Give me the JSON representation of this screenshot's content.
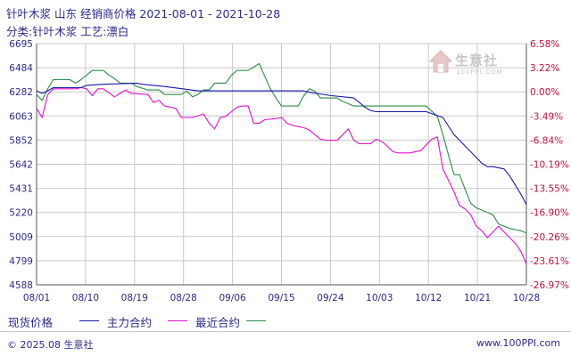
{
  "header": {
    "title": "针叶木浆 山东 经销商价格 2021-08-01 - 2021-10-28",
    "subtitle": "分类:针叶木浆 工艺:漂白"
  },
  "watermark": {
    "name": "生意社",
    "site": "100PPI.COM"
  },
  "footer": {
    "copyright": "© 2025.08 生意社",
    "url": "www.100PPI.com"
  },
  "colors": {
    "spot": "#1a1aa8",
    "main_contract": "#e010d0",
    "latest_contract": "#2e8b46",
    "axis": "#2a2a8a",
    "grid": "#c8c8c8"
  },
  "chart_data": {
    "type": "line",
    "title": "针叶木浆 山东 经销商价格 2021-08-01 - 2021-10-28",
    "ylim": [
      4588,
      6695
    ],
    "y_ticks": [
      "6695",
      "6484",
      "6282",
      "6063",
      "5852",
      "5642",
      "5431",
      "5220",
      "5009",
      "4799",
      "4588"
    ],
    "y2_ticks": [
      "6.58%",
      "3.22%",
      "0.00%",
      "-3.49%",
      "-6.84%",
      "-10.19%",
      "-13.55%",
      "-16.90%",
      "-20.26%",
      "-23.61%",
      "-26.97%"
    ],
    "x_ticks": [
      "08/01",
      "08/10",
      "08/19",
      "08/28",
      "09/06",
      "09/15",
      "09/24",
      "10/03",
      "10/12",
      "10/21",
      "10/28"
    ],
    "x_range_days": [
      0,
      88
    ],
    "legend": [
      "现货价格",
      "主力合约",
      "最近合约"
    ],
    "series": [
      {
        "name": "现货价格",
        "color": "#1a1aa8",
        "points": [
          [
            0,
            6282
          ],
          [
            1,
            6260
          ],
          [
            2,
            6282
          ],
          [
            3,
            6310
          ],
          [
            8,
            6310
          ],
          [
            9,
            6330
          ],
          [
            12,
            6340
          ],
          [
            18,
            6350
          ],
          [
            19,
            6340
          ],
          [
            23,
            6320
          ],
          [
            29,
            6282
          ],
          [
            30,
            6282
          ],
          [
            37,
            6282
          ],
          [
            48,
            6282
          ],
          [
            49,
            6270
          ],
          [
            53,
            6240
          ],
          [
            57,
            6220
          ],
          [
            59,
            6140
          ],
          [
            60,
            6110
          ],
          [
            61,
            6100
          ],
          [
            69,
            6100
          ],
          [
            70,
            6100
          ],
          [
            73,
            6050
          ],
          [
            75,
            5900
          ],
          [
            76,
            5850
          ],
          [
            77,
            5800
          ],
          [
            78,
            5750
          ],
          [
            79,
            5700
          ],
          [
            80,
            5650
          ],
          [
            81,
            5620
          ],
          [
            82,
            5620
          ],
          [
            84,
            5600
          ],
          [
            85,
            5540
          ],
          [
            86,
            5460
          ],
          [
            87,
            5380
          ],
          [
            88,
            5290
          ]
        ]
      },
      {
        "name": "主力合约",
        "color": "#e010d0",
        "points": [
          [
            0,
            6130
          ],
          [
            1,
            6050
          ],
          [
            2,
            6250
          ],
          [
            3,
            6300
          ],
          [
            7,
            6300
          ],
          [
            8,
            6310
          ],
          [
            9,
            6300
          ],
          [
            10,
            6240
          ],
          [
            11,
            6300
          ],
          [
            12,
            6300
          ],
          [
            14,
            6230
          ],
          [
            15,
            6260
          ],
          [
            16,
            6290
          ],
          [
            17,
            6260
          ],
          [
            20,
            6250
          ],
          [
            21,
            6180
          ],
          [
            22,
            6200
          ],
          [
            23,
            6150
          ],
          [
            25,
            6130
          ],
          [
            26,
            6050
          ],
          [
            28,
            6050
          ],
          [
            30,
            6080
          ],
          [
            31,
            6000
          ],
          [
            32,
            5950
          ],
          [
            33,
            6050
          ],
          [
            34,
            6060
          ],
          [
            35,
            6100
          ],
          [
            36,
            6140
          ],
          [
            37,
            6150
          ],
          [
            38,
            6150
          ],
          [
            39,
            6000
          ],
          [
            40,
            6000
          ],
          [
            41,
            6030
          ],
          [
            43,
            6040
          ],
          [
            44,
            6050
          ],
          [
            45,
            6000
          ],
          [
            46,
            5980
          ],
          [
            47,
            5970
          ],
          [
            48,
            5960
          ],
          [
            49,
            5940
          ],
          [
            50,
            5900
          ],
          [
            51,
            5860
          ],
          [
            52,
            5850
          ],
          [
            54,
            5850
          ],
          [
            55,
            5900
          ],
          [
            56,
            5950
          ],
          [
            57,
            5850
          ],
          [
            58,
            5820
          ],
          [
            60,
            5820
          ],
          [
            61,
            5860
          ],
          [
            62,
            5840
          ],
          [
            63,
            5800
          ],
          [
            64,
            5750
          ],
          [
            65,
            5740
          ],
          [
            67,
            5740
          ],
          [
            69,
            5760
          ],
          [
            70,
            5810
          ],
          [
            71,
            5860
          ],
          [
            72,
            5880
          ],
          [
            73,
            5600
          ],
          [
            74,
            5500
          ],
          [
            75,
            5400
          ],
          [
            76,
            5280
          ],
          [
            77,
            5250
          ],
          [
            78,
            5200
          ],
          [
            79,
            5100
          ],
          [
            80,
            5060
          ],
          [
            81,
            5000
          ],
          [
            82,
            5050
          ],
          [
            83,
            5100
          ],
          [
            84,
            5050
          ],
          [
            85,
            5000
          ],
          [
            86,
            4950
          ],
          [
            87,
            4880
          ],
          [
            88,
            4770
          ]
        ]
      },
      {
        "name": "最近合约",
        "color": "#2e8b46",
        "points": [
          [
            0,
            6250
          ],
          [
            1,
            6200
          ],
          [
            2,
            6300
          ],
          [
            3,
            6380
          ],
          [
            6,
            6380
          ],
          [
            7,
            6350
          ],
          [
            8,
            6380
          ],
          [
            9,
            6420
          ],
          [
            10,
            6460
          ],
          [
            12,
            6460
          ],
          [
            13,
            6420
          ],
          [
            14,
            6390
          ],
          [
            15,
            6350
          ],
          [
            17,
            6350
          ],
          [
            18,
            6320
          ],
          [
            20,
            6290
          ],
          [
            22,
            6290
          ],
          [
            23,
            6250
          ],
          [
            26,
            6250
          ],
          [
            27,
            6280
          ],
          [
            28,
            6230
          ],
          [
            29,
            6250
          ],
          [
            30,
            6290
          ],
          [
            31,
            6290
          ],
          [
            32,
            6350
          ],
          [
            34,
            6350
          ],
          [
            35,
            6420
          ],
          [
            36,
            6460
          ],
          [
            38,
            6460
          ],
          [
            39,
            6490
          ],
          [
            40,
            6520
          ],
          [
            41,
            6410
          ],
          [
            42,
            6300
          ],
          [
            43,
            6220
          ],
          [
            44,
            6150
          ],
          [
            47,
            6150
          ],
          [
            48,
            6240
          ],
          [
            49,
            6300
          ],
          [
            50,
            6280
          ],
          [
            51,
            6220
          ],
          [
            54,
            6220
          ],
          [
            55,
            6190
          ],
          [
            56,
            6170
          ],
          [
            57,
            6150
          ],
          [
            63,
            6150
          ],
          [
            64,
            6150
          ],
          [
            66,
            6150
          ],
          [
            70,
            6150
          ],
          [
            72,
            6060
          ],
          [
            73,
            5900
          ],
          [
            74,
            5720
          ],
          [
            75,
            5550
          ],
          [
            76,
            5550
          ],
          [
            77,
            5420
          ],
          [
            78,
            5300
          ],
          [
            79,
            5260
          ],
          [
            80,
            5240
          ],
          [
            81,
            5220
          ],
          [
            82,
            5200
          ],
          [
            83,
            5120
          ],
          [
            84,
            5100
          ],
          [
            85,
            5080
          ],
          [
            86,
            5070
          ],
          [
            87,
            5060
          ],
          [
            88,
            5040
          ]
        ]
      }
    ]
  }
}
